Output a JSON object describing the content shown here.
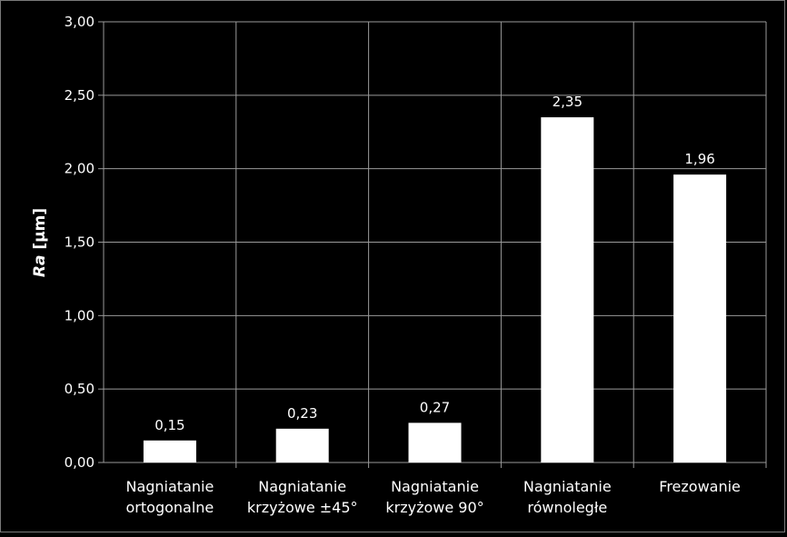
{
  "chart_data": {
    "type": "bar",
    "title": "",
    "xlabel": "",
    "ylabel_italic": "Ra",
    "ylabel_unit": " [µm]",
    "ylim": [
      0,
      3
    ],
    "yticks": [
      "0,00",
      "0,50",
      "1,00",
      "1,50",
      "2,00",
      "2,50",
      "3,00"
    ],
    "ytick_values": [
      0,
      0.5,
      1.0,
      1.5,
      2.0,
      2.5,
      3.0
    ],
    "categories": [
      [
        "Nagniatanie",
        "ortogonalne"
      ],
      [
        "Nagniatanie",
        "krzyżowe ±45°"
      ],
      [
        "Nagniatanie",
        "krzyżowe 90°"
      ],
      [
        "Nagniatanie",
        "równoległe"
      ],
      [
        "Frezowanie"
      ]
    ],
    "values": [
      0.15,
      0.23,
      0.27,
      2.35,
      1.96
    ],
    "value_labels": [
      "0,15",
      "0,23",
      "0,27",
      "2,35",
      "1,96"
    ],
    "grid": true,
    "background_color": "#000000",
    "bar_color": "#ffffff",
    "grid_color": "#9a9a9a",
    "text_color": "#ffffff"
  }
}
